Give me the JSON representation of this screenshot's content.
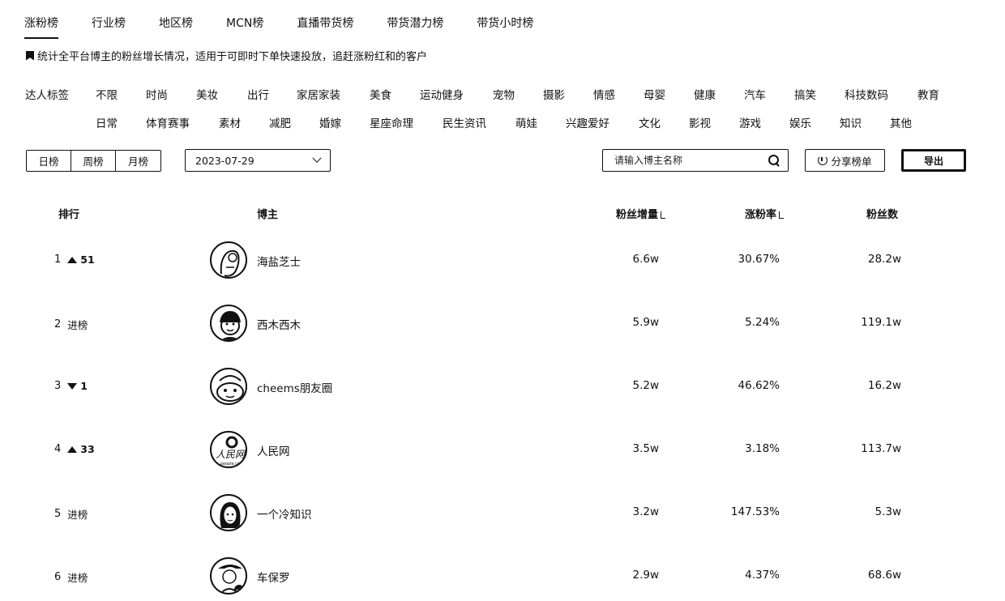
{
  "tabs": [
    "涨粉榜",
    "行业榜",
    "地区榜",
    "MCN榜",
    "直播带货榜",
    "带货潜力榜",
    "带货小时榜"
  ],
  "description": "统计全平台博主的粉丝增长情况，适用于可即时下单快速投放，追赶涨粉红和的客户",
  "tag_label": "达人标签",
  "tags_row1": [
    "不限",
    "时尚",
    "美妆",
    "出行",
    "家居家装",
    "美食",
    "运动健身",
    "宠物",
    "摄影",
    "情感",
    "母婴",
    "健康",
    "汽车",
    "搞笑",
    "科技数码",
    "教育"
  ],
  "tags_row2": [
    "日常",
    "体育赛事",
    "素材",
    "减肥",
    "婚嫁",
    "星座命理",
    "民生资讯",
    "萌娃",
    "兴趣爱好",
    "文化",
    "影视",
    "游戏",
    "娱乐",
    "知识",
    "其他"
  ],
  "period_options": [
    "日榜",
    "周榜",
    "月榜"
  ],
  "date": "2023-07-29",
  "search_placeholder": "请输入博主名称",
  "share_label": "分享榜单",
  "export_label": "导出",
  "columns": {
    "rank": "排行",
    "blogger": "博主",
    "fans_increase": "粉丝增量",
    "growth_rate": "涨粉率",
    "fans": "粉丝数"
  },
  "rows": [
    {
      "rank": "1",
      "trend": "up",
      "trend_text": "51",
      "name": "海盐芝士",
      "increase": "6.6w",
      "rate": "30.67%",
      "fans": "28.2w"
    },
    {
      "rank": "2",
      "trend": "new",
      "trend_text": "进榜",
      "name": "西木西木",
      "increase": "5.9w",
      "rate": "5.24%",
      "fans": "119.1w"
    },
    {
      "rank": "3",
      "trend": "down",
      "trend_text": "1",
      "name": "cheems朋友圈",
      "increase": "5.2w",
      "rate": "46.62%",
      "fans": "16.2w"
    },
    {
      "rank": "4",
      "trend": "up",
      "trend_text": "33",
      "name": "人民网",
      "increase": "3.5w",
      "rate": "3.18%",
      "fans": "113.7w"
    },
    {
      "rank": "5",
      "trend": "new",
      "trend_text": "进榜",
      "name": "一个冷知识",
      "increase": "3.2w",
      "rate": "147.53%",
      "fans": "5.3w"
    },
    {
      "rank": "6",
      "trend": "new",
      "trend_text": "进榜",
      "name": "车保罗",
      "increase": "2.9w",
      "rate": "4.37%",
      "fans": "68.6w"
    }
  ]
}
